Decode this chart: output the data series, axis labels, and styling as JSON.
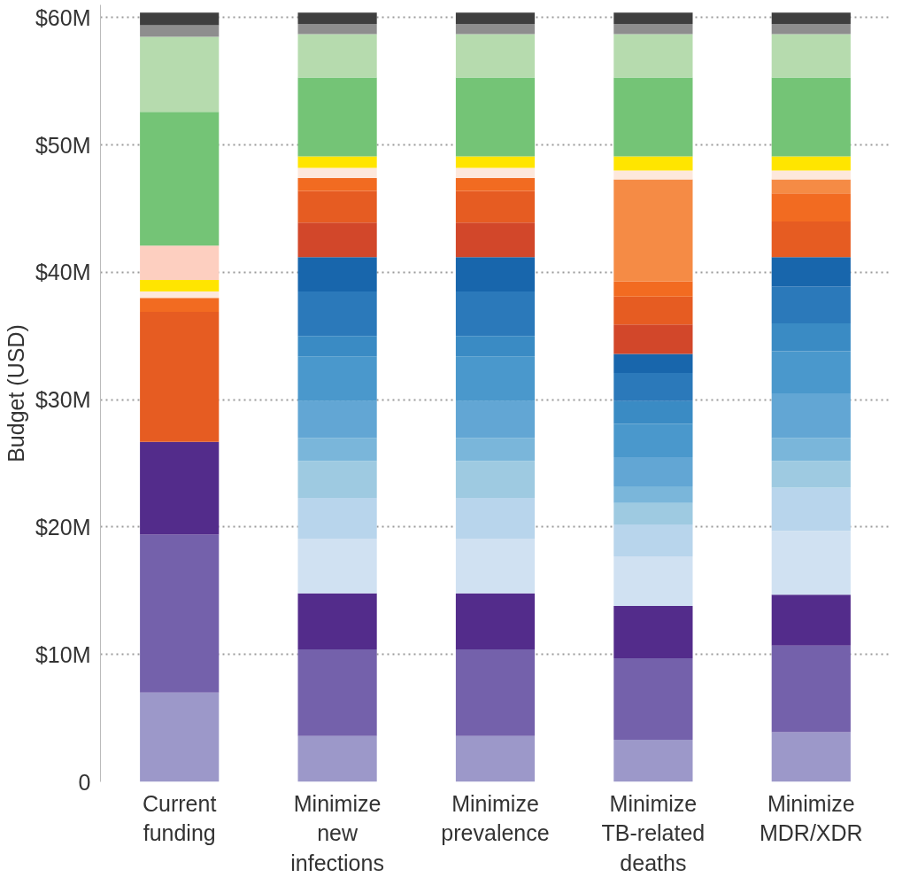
{
  "chart_data": {
    "type": "bar",
    "stacked": true,
    "ylabel": "Budget (USD)",
    "categories": [
      "Current funding",
      "Minimize new infections",
      "Minimize prevalence",
      "Minimize TB-related deaths",
      "Minimize MDR/XDR"
    ],
    "ylim": [
      0,
      61
    ],
    "yticks": [
      0,
      {
        "value": 10,
        "label": "$10M"
      },
      {
        "value": 20,
        "label": "$20M"
      },
      {
        "value": 30,
        "label": "$30M"
      },
      {
        "value": 40,
        "label": "$40M"
      },
      {
        "value": 50,
        "label": "$50M"
      },
      {
        "value": 60,
        "label": "$60M"
      }
    ],
    "grid": "y",
    "series": [
      {
        "color": "#9c98c9",
        "values": [
          7.0,
          3.6,
          3.6,
          3.3,
          3.9
        ]
      },
      {
        "color": "#7461ab",
        "values": [
          12.4,
          6.8,
          6.8,
          6.4,
          6.8
        ]
      },
      {
        "color": "#532c8b",
        "values": [
          7.3,
          4.4,
          4.4,
          4.1,
          4.0
        ]
      },
      {
        "color": "#d0e1f2",
        "values": [
          0,
          4.3,
          4.3,
          3.9,
          5.0
        ]
      },
      {
        "color": "#b8d5ec",
        "values": [
          0,
          3.2,
          3.2,
          2.5,
          3.4
        ]
      },
      {
        "color": "#9ecae1",
        "values": [
          0,
          2.9,
          2.9,
          1.7,
          2.1
        ]
      },
      {
        "color": "#7ab6da",
        "values": [
          0,
          1.8,
          1.8,
          1.3,
          1.8
        ]
      },
      {
        "color": "#62a6d4",
        "values": [
          0,
          2.9,
          2.9,
          2.3,
          3.5
        ]
      },
      {
        "color": "#4a98cc",
        "values": [
          0,
          3.5,
          3.5,
          2.6,
          3.3
        ]
      },
      {
        "color": "#3a8bc4",
        "values": [
          0,
          1.6,
          1.6,
          1.8,
          2.2
        ]
      },
      {
        "color": "#2b79ba",
        "values": [
          0,
          3.5,
          3.5,
          2.2,
          2.9
        ]
      },
      {
        "color": "#1866ac",
        "values": [
          0,
          2.7,
          2.7,
          1.5,
          2.3
        ]
      },
      {
        "color": "#d2472a",
        "values": [
          0,
          2.7,
          2.7,
          2.3,
          0
        ]
      },
      {
        "color": "#e65c22",
        "values": [
          10.2,
          2.5,
          2.5,
          2.2,
          2.8
        ]
      },
      {
        "color": "#f26b21",
        "values": [
          1.1,
          1.0,
          1.0,
          1.2,
          2.2
        ]
      },
      {
        "color": "#f58b45",
        "values": [
          0,
          0,
          0,
          8.0,
          1.1
        ]
      },
      {
        "color": "#fde8dc",
        "values": [
          0.5,
          0.8,
          0.8,
          0.7,
          0.7
        ]
      },
      {
        "color": "#ffe500",
        "values": [
          0.9,
          0.9,
          0.9,
          1.1,
          1.1
        ]
      },
      {
        "color": "#fdcfc0",
        "values": [
          2.7,
          0,
          0,
          0,
          0
        ]
      },
      {
        "color": "#74c476",
        "values": [
          10.5,
          6.2,
          6.2,
          6.2,
          6.2
        ]
      },
      {
        "color": "#b6dbae",
        "values": [
          5.9,
          3.4,
          3.4,
          3.4,
          3.4
        ]
      },
      {
        "color": "#8e8e8e",
        "values": [
          0.9,
          0.8,
          0.8,
          0.8,
          0.8
        ]
      },
      {
        "color": "#3f3f3f",
        "values": [
          1.0,
          0.9,
          0.9,
          0.9,
          0.9
        ]
      }
    ]
  }
}
